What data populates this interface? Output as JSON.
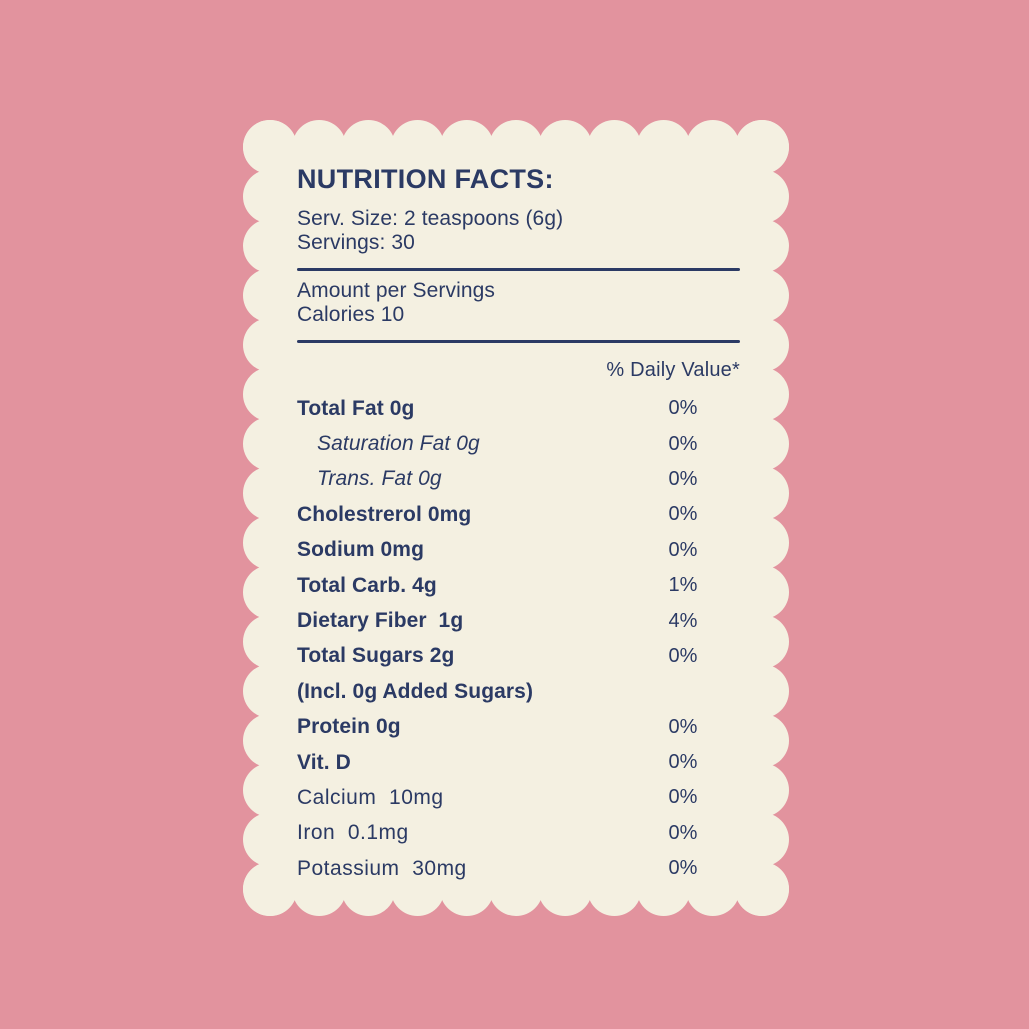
{
  "colors": {
    "background": "#e2939e",
    "card": "#f4f0e1",
    "ink": "#2b3a64"
  },
  "header": {
    "title": "NUTRITION FACTS:",
    "serving_size": "Serv. Size: 2 teaspoons (6g)",
    "servings": "Servings: 30",
    "amount_per_servings": "Amount per Servings",
    "calories": "Calories 10"
  },
  "table": {
    "daily_value_header": "% Daily Value*",
    "rows": [
      {
        "label": "Total Fat 0g",
        "value": "0%",
        "style": "main"
      },
      {
        "label": "Saturation Fat 0g",
        "value": "0%",
        "style": "sub"
      },
      {
        "label": "Trans. Fat 0g",
        "value": "0%",
        "style": "sub"
      },
      {
        "label": "Cholestrerol 0mg",
        "value": "0%",
        "style": "main"
      },
      {
        "label": "Sodium 0mg",
        "value": "0%",
        "style": "main"
      },
      {
        "label": "Total Carb. 4g",
        "value": "1%",
        "style": "main"
      },
      {
        "label": "Dietary Fiber  1g",
        "value": "4%",
        "style": "main"
      },
      {
        "label": "Total Sugars 2g",
        "value": "0%",
        "style": "main"
      },
      {
        "label": "(Incl. 0g Added Sugars)",
        "value": "",
        "style": "main"
      },
      {
        "label": "Protein 0g",
        "value": "0%",
        "style": "main"
      },
      {
        "label": "Vit. D",
        "value": "0%",
        "style": "main"
      },
      {
        "label": "Calcium  10mg",
        "value": "0%",
        "style": "light"
      },
      {
        "label": "Iron  0.1mg",
        "value": "0%",
        "style": "light"
      },
      {
        "label": "Potassium  30mg",
        "value": "0%",
        "style": "light"
      }
    ]
  }
}
